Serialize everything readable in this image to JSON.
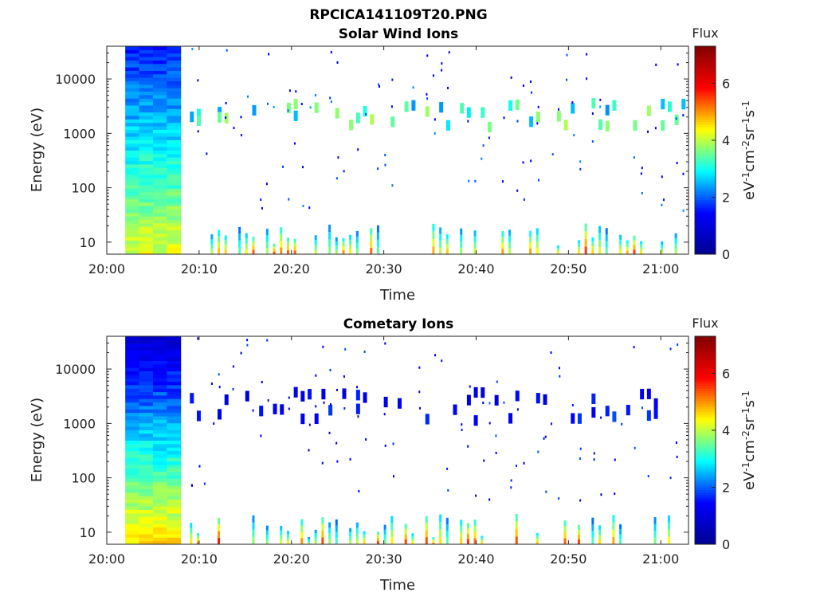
{
  "figure": {
    "title": "RPCICA141109T20.PNG"
  },
  "chart_data": [
    {
      "type": "heatmap",
      "title": "Solar Wind Ions",
      "xlabel": "Time",
      "ylabel": "Energy (eV)",
      "xticks": [
        "20:00",
        "20:10",
        "20:20",
        "20:30",
        "20:40",
        "20:50",
        "21:00"
      ],
      "xlim": [
        "20:00",
        "21:03"
      ],
      "yscale": "log",
      "yticks": [
        10,
        100,
        1000,
        10000
      ],
      "ylim": [
        6,
        40000
      ],
      "colorbar": {
        "label": "Flux",
        "units": "eV-1cm-2sr-1s-1",
        "ticks": [
          0,
          2,
          4,
          6
        ],
        "range": [
          0,
          7.3
        ]
      },
      "colormap": [
        "#00008f",
        "#0000ff",
        "#00ffff",
        "#ffff00",
        "#ff0000",
        "#800000"
      ],
      "dense_block": {
        "start": "20:02",
        "end": "20:08",
        "low_energy_level": 4.2,
        "high_energy_level": 1.6
      },
      "bands": [
        {
          "energy": 3000,
          "level": 3.2
        },
        {
          "energy": 1700,
          "level": 3.4
        }
      ],
      "low_energy_level": 5.8,
      "scatter_level": 1.2
    },
    {
      "type": "heatmap",
      "title": "Cometary Ions",
      "xlabel": "Time",
      "ylabel": "Energy (eV)",
      "xticks": [
        "20:00",
        "20:10",
        "20:20",
        "20:30",
        "20:40",
        "20:50",
        "21:00"
      ],
      "xlim": [
        "20:00",
        "21:03"
      ],
      "yscale": "log",
      "yticks": [
        10,
        100,
        1000,
        10000
      ],
      "ylim": [
        6,
        40000
      ],
      "colorbar": {
        "label": "Flux",
        "units": "eV-1cm-2sr-1s-1",
        "ticks": [
          0,
          2,
          4,
          6
        ],
        "range": [
          0,
          7.3
        ]
      },
      "colormap": [
        "#00008f",
        "#0000ff",
        "#00ffff",
        "#ffff00",
        "#ff0000",
        "#800000"
      ],
      "dense_block": {
        "start": "20:02",
        "end": "20:08",
        "low_energy_level": 4.6,
        "high_energy_level": 0.9
      },
      "bands": [
        {
          "energy": 3000,
          "level": 1.4
        },
        {
          "energy": 1500,
          "level": 1.6
        }
      ],
      "low_energy_level": 6.0,
      "scatter_level": 1.0
    }
  ]
}
